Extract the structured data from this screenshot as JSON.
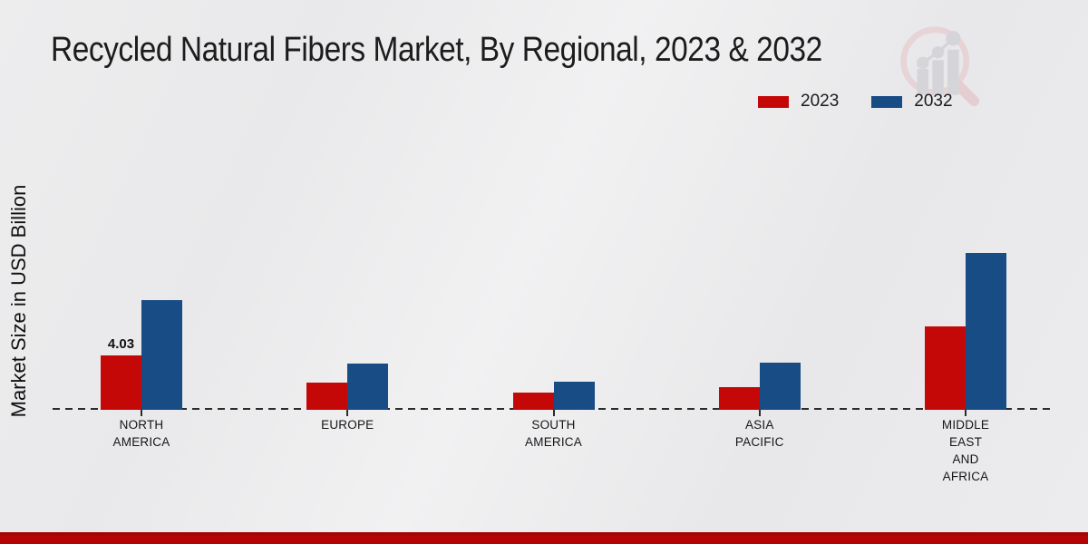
{
  "title": "Recycled Natural Fibers Market, By Regional, 2023 & 2032",
  "y_axis_label": "Market Size in USD Billion",
  "legend": [
    {
      "label": "2023",
      "color": "#c40808"
    },
    {
      "label": "2032",
      "color": "#174c85"
    }
  ],
  "colors": {
    "bar_2023": "#c40808",
    "bar_2032": "#174c85",
    "baseline": "#2b2b2b",
    "bottom_strip": "#b20404",
    "background": "#ebebed"
  },
  "annotation": {
    "text": "4.03",
    "category_index": 0,
    "series_index": 0
  },
  "chart_data": {
    "type": "bar",
    "title": "Recycled Natural Fibers Market, By Regional, 2023 & 2032",
    "xlabel": "",
    "ylabel": "Market Size in USD Billion",
    "ylim": [
      0,
      12
    ],
    "grid": false,
    "legend_position": "top-right",
    "categories": [
      "NORTH AMERICA",
      "EUROPE",
      "SOUTH AMERICA",
      "ASIA PACIFIC",
      "MIDDLE EAST AND AFRICA"
    ],
    "categories_lines": [
      [
        "NORTH",
        "AMERICA"
      ],
      [
        "EUROPE"
      ],
      [
        "SOUTH",
        "AMERICA"
      ],
      [
        "ASIA",
        "PACIFIC"
      ],
      [
        "MIDDLE",
        "EAST",
        "AND",
        "AFRICA"
      ]
    ],
    "series": [
      {
        "name": "2023",
        "color": "#c40808",
        "values": [
          4.03,
          2.0,
          1.25,
          1.7,
          6.2
        ]
      },
      {
        "name": "2032",
        "color": "#174c85",
        "values": [
          8.15,
          3.4,
          2.1,
          3.5,
          11.6
        ]
      }
    ],
    "data_labels": [
      {
        "series": "2023",
        "category": "NORTH AMERICA",
        "label": "4.03"
      }
    ]
  }
}
